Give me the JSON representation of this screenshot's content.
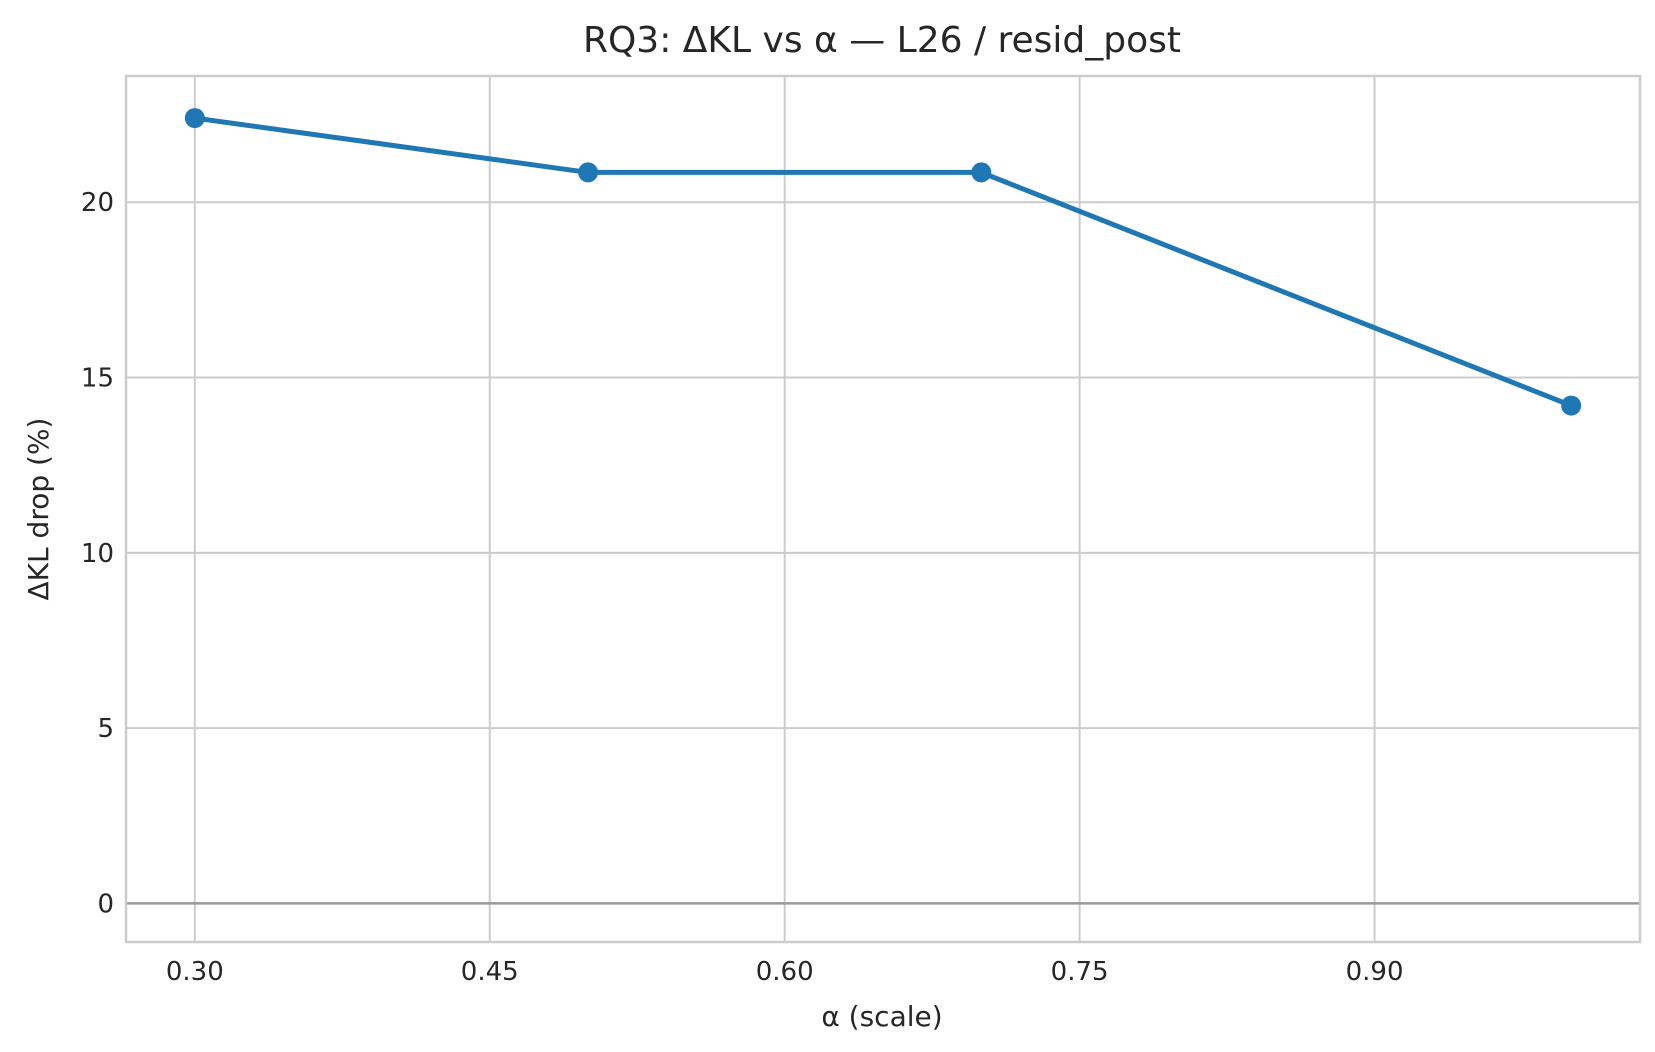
{
  "chart_data": {
    "type": "line",
    "title": "RQ3: ΔKL vs α — L26 / resid_post",
    "xlabel": "α (scale)",
    "ylabel": "ΔKL drop (%)",
    "xlim": [
      0.265,
      1.035
    ],
    "ylim": [
      -1.1,
      23.6
    ],
    "xticks": [
      0.3,
      0.45,
      0.6,
      0.75,
      0.9
    ],
    "xtick_labels": [
      "0.30",
      "0.45",
      "0.60",
      "0.75",
      "0.90"
    ],
    "yticks": [
      0,
      5,
      10,
      15,
      20
    ],
    "ytick_labels": [
      "0",
      "5",
      "10",
      "15",
      "20"
    ],
    "grid": true,
    "reference_line_y": 0,
    "colors": {
      "series": "#1f77b4",
      "grid": "#cccccc",
      "zero_line": "#999999",
      "frame": "#cccccc"
    },
    "series": [
      {
        "x": [
          0.3,
          0.5,
          0.7,
          1.0
        ],
        "y": [
          22.4,
          20.85,
          20.85,
          14.2
        ]
      }
    ]
  }
}
